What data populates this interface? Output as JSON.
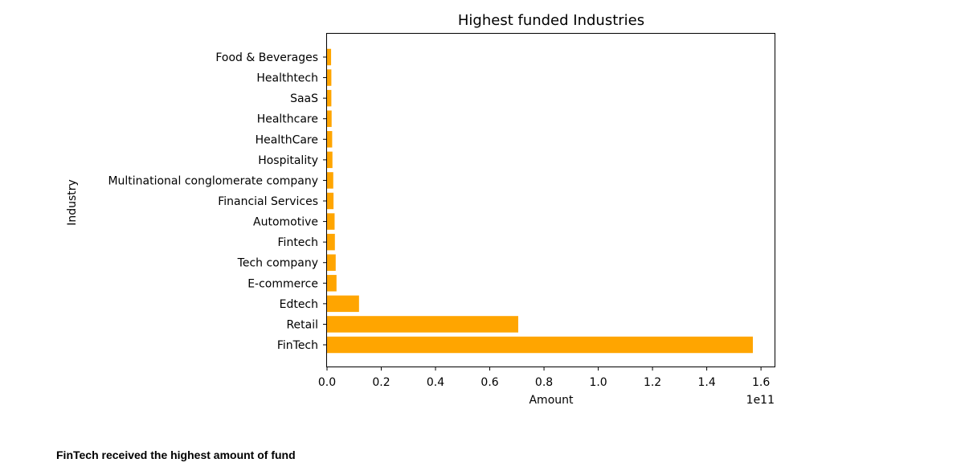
{
  "chart_data": {
    "type": "bar",
    "orientation": "horizontal",
    "title": "Highest funded Industries",
    "xlabel": "Amount",
    "ylabel": "Industry",
    "x_offset_label": "1e11",
    "xlim": [
      0,
      1.65
    ],
    "xticks": [
      "0.0",
      "0.2",
      "0.4",
      "0.6",
      "0.8",
      "1.0",
      "1.2",
      "1.4",
      "1.6"
    ],
    "grid": false,
    "bar_color": "#ffa500",
    "categories": [
      "FinTech",
      "Retail",
      "Edtech",
      "E-commerce",
      "Tech company",
      "Fintech",
      "Automotive",
      "Financial Services",
      "Multinational conglomerate company",
      "Hospitality",
      "HealthCare",
      "Healthcare",
      "SaaS",
      "Healthtech",
      "Food & Beverages"
    ],
    "values": [
      1.57,
      0.705,
      0.118,
      0.035,
      0.032,
      0.029,
      0.028,
      0.024,
      0.023,
      0.02,
      0.019,
      0.017,
      0.016,
      0.016,
      0.015
    ]
  },
  "caption": "FinTech received the highest amount of fund"
}
